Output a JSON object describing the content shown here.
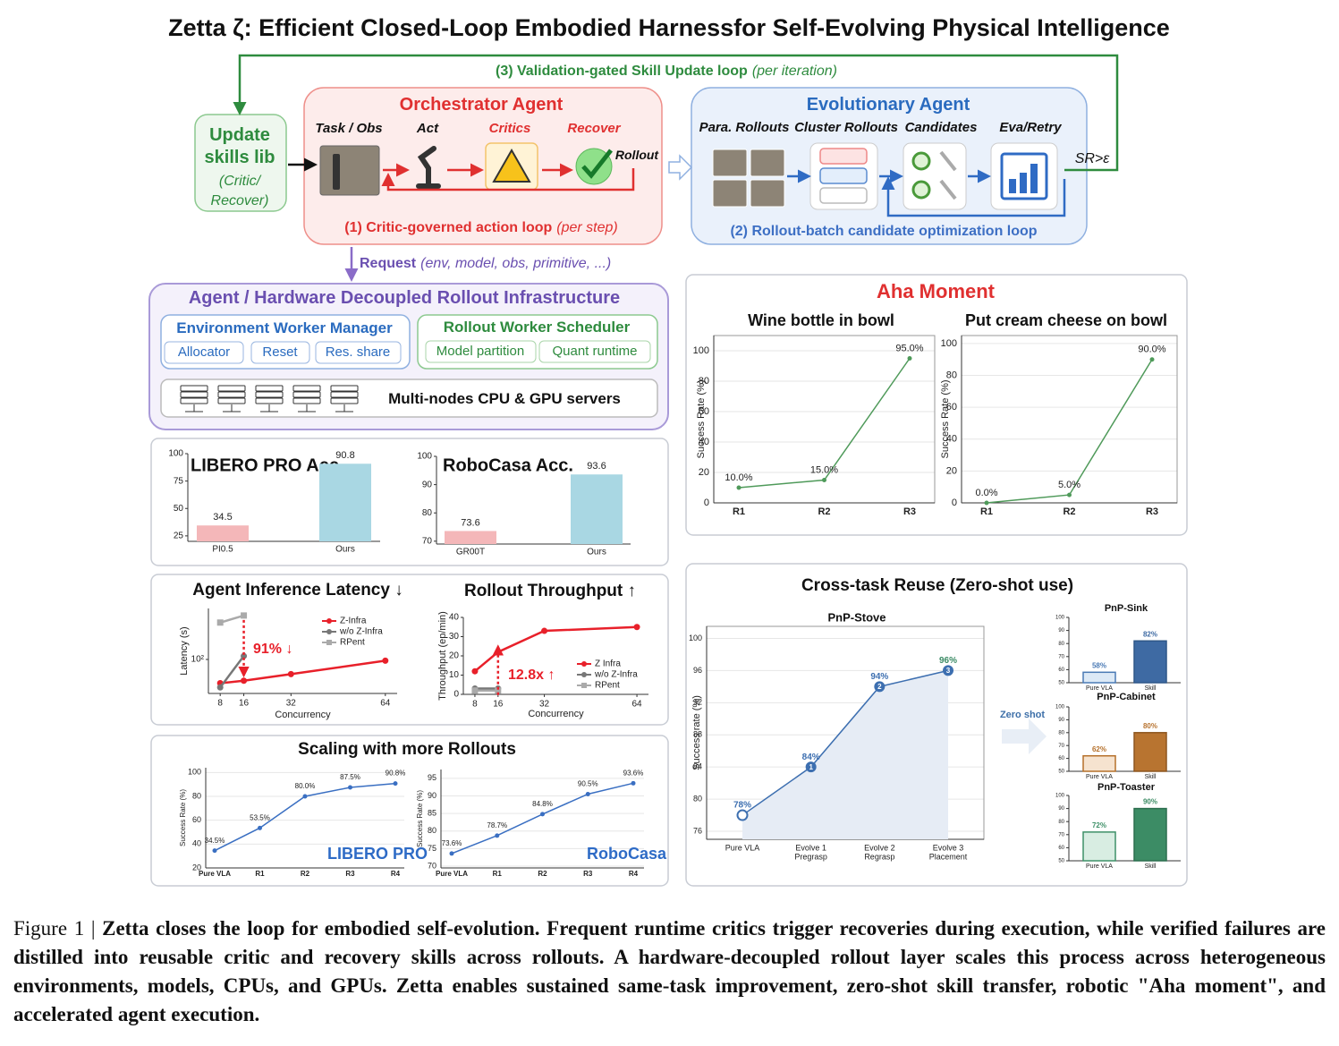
{
  "header": {
    "title": "Zetta ζ: Efficient Closed-Loop Embodied Harnessfor Self-Evolving Physical Intelligence"
  },
  "skill_loop": {
    "label": "(3) Validation-gated Skill Update loop",
    "note": "(per iteration)"
  },
  "update_skills": {
    "title": [
      "Update",
      "skills lib"
    ],
    "note": [
      "(Critic/",
      "Recover)"
    ]
  },
  "orchestrator": {
    "title": "Orchestrator Agent",
    "steps": [
      "Task / Obs",
      "Act",
      "Critics",
      "Recover"
    ],
    "rollout": "Rollout",
    "loop": "(1) Critic-governed action loop",
    "loop_note": "(per step)"
  },
  "evolutionary": {
    "title": "Evolutionary Agent",
    "steps": [
      "Para. Rollouts",
      "Cluster Rollouts",
      "Candidates",
      "Eva/Retry"
    ],
    "gate": "SR>ε",
    "loop": "(2) Rollout-batch candidate optimization loop"
  },
  "request": {
    "label": "Request",
    "args": "(env, model, obs, primitive, ...)"
  },
  "infrastructure": {
    "title": "Agent / Hardware Decoupled Rollout Infrastructure",
    "env_manager": {
      "title": "Environment Worker Manager",
      "items": [
        "Allocator",
        "Reset",
        "Res. share"
      ]
    },
    "scheduler": {
      "title": "Rollout Worker Scheduler",
      "items": [
        "Model partition",
        "Quant runtime"
      ]
    },
    "servers": "Multi-nodes CPU & GPU servers"
  },
  "panels": {
    "scaling": "Scaling with more Rollouts",
    "aha": "Aha Moment",
    "cross_task": "Cross-task Reuse (Zero-shot use)",
    "zero_shot": "Zero shot"
  },
  "caption": {
    "label": "Figure 1 |",
    "text": "Zetta closes the loop for embodied self-evolution. Frequent runtime critics trigger recoveries during execution, while verified failures are distilled into reusable critic and recovery skills across rollouts. A hardware-decoupled rollout layer scales this process across heterogeneous environments, models, CPUs, and GPUs. Zetta enables sustained same-task improvement, zero-shot skill transfer, robotic \"Aha moment\", and accelerated agent execution."
  },
  "chart_data": [
    {
      "type": "bar",
      "title": "LIBERO PRO Acc.",
      "categories": [
        "PI0.5",
        "Ours"
      ],
      "values": [
        34.5,
        90.8
      ],
      "colors": [
        "#f4b7b9",
        "#a9d7e3"
      ],
      "ylim": [
        20,
        100
      ],
      "yticks": [
        25,
        50,
        75,
        100
      ]
    },
    {
      "type": "bar",
      "title": "RoboCasa Acc.",
      "categories": [
        "GR00T",
        "Ours"
      ],
      "values": [
        73.6,
        93.6
      ],
      "colors": [
        "#f4b7b9",
        "#a9d7e3"
      ],
      "ylim": [
        69,
        100
      ],
      "yticks": [
        70,
        80,
        90,
        100
      ]
    },
    {
      "type": "line",
      "title": "Agent Inference Latency ↓",
      "xlabel": "Concurrency",
      "ylabel": "Latency (s)",
      "x": [
        8,
        16,
        32,
        64
      ],
      "xlim": [
        4,
        68
      ],
      "xticks": [
        8,
        16,
        32,
        64
      ],
      "yscale": "log",
      "ylim": [
        25,
        800
      ],
      "yticks": [
        {
          "value": 100,
          "label": "10²"
        }
      ],
      "legend": "upper right",
      "series": [
        {
          "name": "Z-Infra",
          "color": "#e8202a",
          "marker": "circle",
          "values": [
            38,
            42,
            55,
            95
          ]
        },
        {
          "name": "w/o Z-Infra",
          "color": "#777777",
          "marker": "circle",
          "values": [
            32,
            115,
            null,
            null
          ]
        },
        {
          "name": "RPent",
          "color": "#aaaaaa",
          "marker": "square",
          "values": [
            450,
            600,
            null,
            null
          ]
        }
      ],
      "annotation": {
        "text": "91% ↓",
        "color": "#e8202a"
      }
    },
    {
      "type": "line",
      "title": "Rollout Throughput ↑",
      "xlabel": "Concurrency",
      "ylabel": "Throughput (ep/min)",
      "x": [
        8,
        16,
        32,
        64
      ],
      "xlim": [
        4,
        68
      ],
      "xticks": [
        8,
        16,
        32,
        64
      ],
      "ylim": [
        0,
        40
      ],
      "yticks": [
        0,
        10,
        20,
        30,
        40
      ],
      "legend": "lower right",
      "series": [
        {
          "name": "Z Infra",
          "color": "#e8202a",
          "marker": "circle",
          "values": [
            12,
            22,
            33,
            35
          ]
        },
        {
          "name": "w/o Z-Infra",
          "color": "#777777",
          "marker": "circle",
          "values": [
            3,
            3,
            null,
            null
          ]
        },
        {
          "name": "RPent",
          "color": "#aaaaaa",
          "marker": "square",
          "values": [
            2,
            2,
            null,
            null
          ]
        }
      ],
      "annotation": {
        "text": "12.8x ↑",
        "color": "#e8202a"
      }
    },
    {
      "type": "line",
      "ylabel": "Success Rate (%)",
      "categories": [
        "Pure VLA",
        "R1",
        "R2",
        "R3",
        "R4"
      ],
      "ylim": [
        20,
        104
      ],
      "yticks": [
        20,
        40,
        60,
        80,
        100
      ],
      "grid": true,
      "series": [
        {
          "name": "LIBERO PRO",
          "color": "#3a6fc2",
          "marker": "dot",
          "values": [
            34.5,
            53.5,
            80.0,
            87.5,
            90.8
          ],
          "value_labels": [
            "34.5%",
            "53.5%",
            "80.0%",
            "87.5%",
            "90.8%"
          ]
        }
      ],
      "annotation": {
        "text": "LIBERO PRO",
        "color": "#2e6bc6"
      }
    },
    {
      "type": "line",
      "ylabel": "Success Rate (%)",
      "categories": [
        "Pure VLA",
        "R1",
        "R2",
        "R3",
        "R4"
      ],
      "ylim": [
        69.5,
        97.5
      ],
      "yticks": [
        70,
        75,
        80,
        85,
        90,
        95
      ],
      "grid": true,
      "series": [
        {
          "name": "RoboCasa",
          "color": "#3a6fc2",
          "marker": "dot",
          "values": [
            73.6,
            78.7,
            84.8,
            90.5,
            93.6
          ],
          "value_labels": [
            "73.6%",
            "78.7%",
            "84.8%",
            "90.5%",
            "93.6%"
          ]
        }
      ],
      "annotation": {
        "text": "RoboCasa",
        "color": "#2e6bc6"
      }
    },
    {
      "type": "line",
      "title": "Wine bottle in bowl",
      "ylabel": "Success Rate (%)",
      "categories": [
        "R1",
        "R2",
        "R3"
      ],
      "ylim": [
        0,
        110
      ],
      "yticks": [
        0,
        20,
        40,
        60,
        80,
        100
      ],
      "grid": true,
      "series": [
        {
          "name": "Wine bottle in bowl",
          "color": "#4f9a5a",
          "marker": "dot",
          "values": [
            10,
            15,
            95
          ],
          "value_labels": [
            "10.0%",
            "15.0%",
            "95.0%"
          ]
        }
      ]
    },
    {
      "type": "line",
      "title": "Put cream cheese on bowl",
      "ylabel": "Success Rate (%)",
      "categories": [
        "R1",
        "R2",
        "R3"
      ],
      "ylim": [
        0,
        105
      ],
      "yticks": [
        0,
        20,
        40,
        60,
        80,
        100
      ],
      "grid": true,
      "series": [
        {
          "name": "Put cream cheese on bowl",
          "color": "#4f9a5a",
          "marker": "dot",
          "values": [
            0,
            5,
            90
          ],
          "value_labels": [
            "0.0%",
            "5.0%",
            "90.0%"
          ]
        }
      ]
    },
    {
      "type": "line",
      "title": "PnP-Stove",
      "ylabel": "Success rate (%)",
      "categories": [
        "Pure VLA",
        "Evolve 1",
        "Evolve 2",
        "Evolve 3"
      ],
      "sublabels": [
        null,
        "Pregrasp",
        "Regrasp",
        "Placement"
      ],
      "markers": [
        null,
        "1",
        "2",
        "3"
      ],
      "ylim": [
        75,
        101.5
      ],
      "yticks": [
        76,
        80,
        84,
        88,
        92,
        96,
        100
      ],
      "grid": true,
      "area": true,
      "series": [
        {
          "name": "PnP-Stove",
          "color": "#3d6fb0",
          "marker": "ring",
          "values": [
            78,
            84,
            94,
            96
          ],
          "value_labels": [
            "78%",
            "84%",
            "94%",
            "96%"
          ],
          "label_colors": [
            "#3d6fb0",
            "#3d6fb0",
            "#3d6fb0",
            "#3a8a64"
          ]
        }
      ]
    },
    {
      "type": "bar",
      "title": "PnP-Sink",
      "categories": [
        "Pure VLA",
        "Skill"
      ],
      "values": [
        58,
        82
      ],
      "value_labels": [
        "58%",
        "82%"
      ],
      "colors": [
        "#dce9f6",
        "#3e6aa3"
      ],
      "edgecolors": [
        "#4a7ab5",
        "#2f5788"
      ],
      "label_colors": [
        "#4a7ab5",
        "#3e6aa3"
      ],
      "ylim": [
        50,
        100
      ],
      "yticks": [
        50,
        60,
        70,
        80,
        90,
        100
      ]
    },
    {
      "type": "bar",
      "title": "PnP-Cabinet",
      "categories": [
        "Pure VLA",
        "Skill"
      ],
      "values": [
        62,
        80
      ],
      "value_labels": [
        "62%",
        "80%"
      ],
      "colors": [
        "#f6e3cf",
        "#b87430"
      ],
      "edgecolors": [
        "#b5702a",
        "#8d5620"
      ],
      "label_colors": [
        "#b5702a",
        "#b87430"
      ],
      "ylim": [
        50,
        100
      ],
      "yticks": [
        50,
        60,
        70,
        80,
        90,
        100
      ]
    },
    {
      "type": "bar",
      "title": "PnP-Toaster",
      "categories": [
        "Pure VLA",
        "Skill"
      ],
      "values": [
        72,
        90
      ],
      "value_labels": [
        "72%",
        "90%"
      ],
      "colors": [
        "#d8ede2",
        "#3c8c65"
      ],
      "edgecolors": [
        "#3e9068",
        "#2c6e4e"
      ],
      "label_colors": [
        "#3e9068",
        "#3c8c65"
      ],
      "ylim": [
        50,
        100
      ],
      "yticks": [
        50,
        60,
        70,
        80,
        90,
        100
      ]
    }
  ]
}
